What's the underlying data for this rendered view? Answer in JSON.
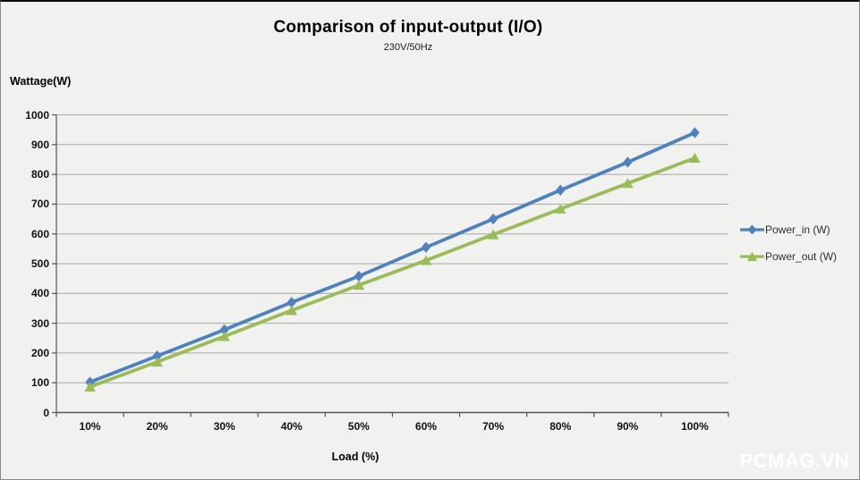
{
  "header": {
    "title": "Comparison of input-output (I/O)",
    "subtitle": "230V/50Hz"
  },
  "watermark": {
    "text": "PCMAG.VN"
  },
  "colors": {
    "background": "#f1f1ef",
    "gridline": "#a6a6a6",
    "axis": "#555555",
    "power_in": "#4F81BD",
    "power_out": "#9BBB59"
  },
  "chart_data": {
    "type": "line",
    "title": "Comparison of input-output (I/O)",
    "subtitle": "230V/50Hz",
    "xlabel": "Load (%)",
    "ylabel": "Wattage(W)",
    "categories": [
      "10%",
      "20%",
      "30%",
      "40%",
      "50%",
      "60%",
      "70%",
      "80%",
      "90%",
      "100%"
    ],
    "series": [
      {
        "name": "Power_in (W)",
        "color": "#4F81BD",
        "marker": "diamond",
        "values": [
          102,
          190,
          278,
          370,
          458,
          555,
          650,
          747,
          841,
          940
        ]
      },
      {
        "name": "Power_out (W)",
        "color": "#9BBB59",
        "marker": "triangle",
        "values": [
          86,
          170,
          256,
          343,
          428,
          511,
          598,
          684,
          770,
          855
        ]
      }
    ],
    "ylim": [
      0,
      1000
    ],
    "y_ticks": [
      0,
      100,
      200,
      300,
      400,
      500,
      600,
      700,
      800,
      900,
      1000
    ],
    "grid": true,
    "legend_position": "right"
  }
}
